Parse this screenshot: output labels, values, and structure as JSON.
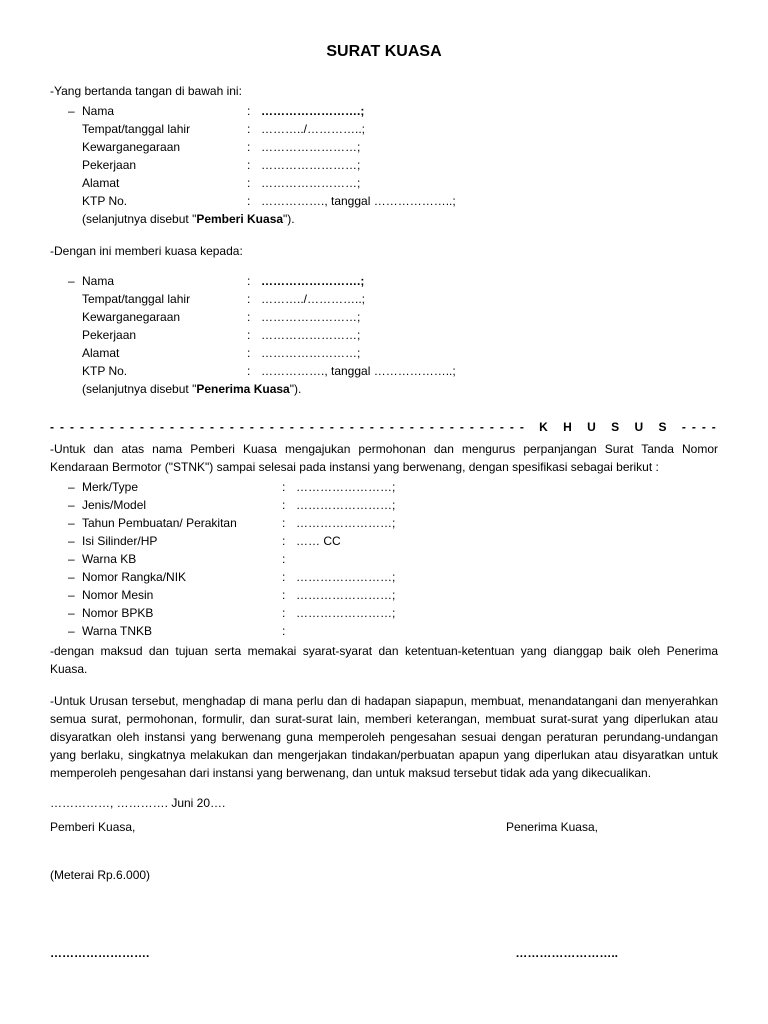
{
  "title": "SURAT KUASA",
  "intro": "-Yang bertanda tangan di bawah ini:",
  "party1": {
    "fields": [
      {
        "dash": "–",
        "label": "Nama",
        "value": "…………………….",
        "bold": true
      },
      {
        "dash": "",
        "label": "Tempat/tanggal lahir",
        "value": "………../…………..;"
      },
      {
        "dash": "",
        "label": "Kewarganegaraan",
        "value": "……………………;"
      },
      {
        "dash": "",
        "label": "Pekerjaan",
        "value": "……………………;"
      },
      {
        "dash": "",
        "label": "Alamat",
        "value": "……………………;"
      },
      {
        "dash": "",
        "label": "KTP No.",
        "value": "……………., tanggal ………………..;"
      }
    ],
    "closing_pre": "(selanjutnya disebut \"",
    "closing_bold": "Pemberi Kuasa",
    "closing_post": "\")."
  },
  "middle": "-Dengan ini memberi kuasa kepada:",
  "party2": {
    "fields": [
      {
        "dash": "–",
        "label": "Nama",
        "value": "…………………….",
        "bold": true
      },
      {
        "dash": "",
        "label": "Tempat/tanggal lahir",
        "value": "………../…………..;"
      },
      {
        "dash": "",
        "label": "Kewarganegaraan",
        "value": "……………………;"
      },
      {
        "dash": "",
        "label": "Pekerjaan",
        "value": "……………………;"
      },
      {
        "dash": "",
        "label": "Alamat",
        "value": "……………………;"
      },
      {
        "dash": "",
        "label": "KTP No.",
        "value": "……………., tanggal ………………..;"
      }
    ],
    "closing_pre": "(selanjutnya disebut \"",
    "closing_bold": "Penerima Kuasa",
    "closing_post": "\")."
  },
  "khusus_header": "------------------------------------------------ K H U S U S -----------------------------------------------",
  "khusus_intro": "-Untuk dan atas nama Pemberi Kuasa mengajukan permohonan dan mengurus perpanjangan Surat Tanda Nomor Kendaraan Bermotor (\"STNK\") sampai selesai pada instansi yang berwenang, dengan spesifikasi sebagai berikut :",
  "specs": [
    {
      "label": "Merk/Type",
      "value": "……………………;"
    },
    {
      "label": "Jenis/Model",
      "value": "……………………;"
    },
    {
      "label": "Tahun Pembuatan/ Perakitan",
      "value": "……………………;"
    },
    {
      "label": "Isi Silinder/HP",
      "value": "……  CC"
    },
    {
      "label": "Warna KB",
      "value": ""
    },
    {
      "label": "Nomor Rangka/NIK",
      "value": "……………………;"
    },
    {
      "label": "Nomor Mesin",
      "value": "……………………;"
    },
    {
      "label": "Nomor BPKB",
      "value": "……………………;"
    },
    {
      "label": "Warna TNKB",
      "value": ""
    }
  ],
  "spec_closing": "-dengan maksud dan tujuan serta memakai syarat-syarat dan ketentuan-ketentuan yang dianggap baik oleh Penerima Kuasa.",
  "para2": "-Untuk Urusan tersebut, menghadap di mana perlu dan di hadapan siapapun, membuat, menandatangani dan menyerahkan semua surat, permohonan, formulir, dan surat-surat lain, memberi keterangan, membuat surat-surat yang diperlukan atau disyaratkan oleh instansi yang berwenang guna memperoleh pengesahan sesuai dengan peraturan perundang-undangan yang berlaku, singkatnya melakukan dan mengerjakan tindakan/perbuatan  apapun yang diperlukan atau disyaratkan untuk memperoleh pengesahan dari instansi yang berwenang, dan untuk maksud tersebut tidak ada yang dikecualikan.",
  "date_line": "……………, …………. Juni 20….",
  "sig": {
    "left": "Pemberi Kuasa,",
    "right": "Penerima Kuasa,"
  },
  "meterai": "(Meterai Rp.6.000)",
  "sigline": {
    "left": "…………………….",
    "right": "…………………….."
  }
}
